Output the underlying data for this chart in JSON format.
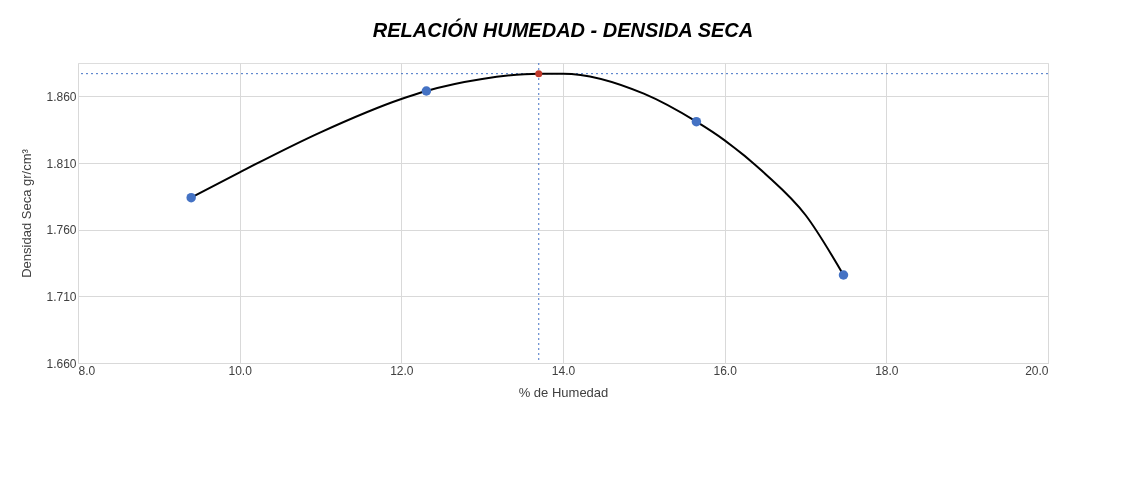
{
  "chart_data": {
    "type": "scatter",
    "title": "RELACIÓN HUMEDAD - DENSIDA SECA",
    "xlabel": "% de Humedad",
    "ylabel": "Densidad Seca gr/cm³",
    "series": [
      {
        "type": "line",
        "color": "#000000",
        "marker": "none",
        "line_style": "solid",
        "x": [
          9.4,
          10.0,
          11.0,
          12.0,
          12.31,
          13.0,
          13.7,
          14.0,
          15.0,
          15.65,
          16.0,
          16.5,
          17.0,
          17.47
        ],
        "values": [
          1.784,
          1.803,
          1.833,
          1.858,
          1.864,
          1.873,
          1.877,
          1.877,
          1.862,
          1.841,
          1.827,
          1.802,
          1.771,
          1.726
        ]
      },
      {
        "color": "#4472c4",
        "marker": "circle",
        "x": [
          9.4,
          12.31,
          15.65,
          17.47
        ],
        "values": [
          1.784,
          1.864,
          1.841,
          1.726
        ]
      },
      {
        "color": "#c0392b",
        "marker": "circle",
        "x": [
          13.7
        ],
        "values": [
          1.877
        ]
      }
    ],
    "ref_lines": [
      {
        "axis": "x",
        "value": 13.7,
        "color": "#4472c4",
        "line_style": "dotted"
      },
      {
        "axis": "y",
        "value": 1.877,
        "color": "#4472c4",
        "line_style": "dotted"
      }
    ],
    "xlim": [
      8.0,
      20.0
    ],
    "xticks": [
      {
        "value": 8,
        "label": "8.0"
      },
      {
        "value": 10,
        "label": "10.0"
      },
      {
        "value": 12,
        "label": "12.0"
      },
      {
        "value": 14,
        "label": "14.0"
      },
      {
        "value": 16,
        "label": "16.0"
      },
      {
        "value": 18,
        "label": "18.0"
      },
      {
        "value": 20,
        "label": "20.0"
      }
    ],
    "ylim": [
      1.66,
      1.885
    ],
    "yticks": [
      {
        "value": 1.66,
        "label": "1.660"
      },
      {
        "value": 1.71,
        "label": "1.710"
      },
      {
        "value": 1.76,
        "label": "1.760"
      },
      {
        "value": 1.81,
        "label": "1.810"
      },
      {
        "value": 1.86,
        "label": "1.860"
      }
    ],
    "grid": true
  }
}
